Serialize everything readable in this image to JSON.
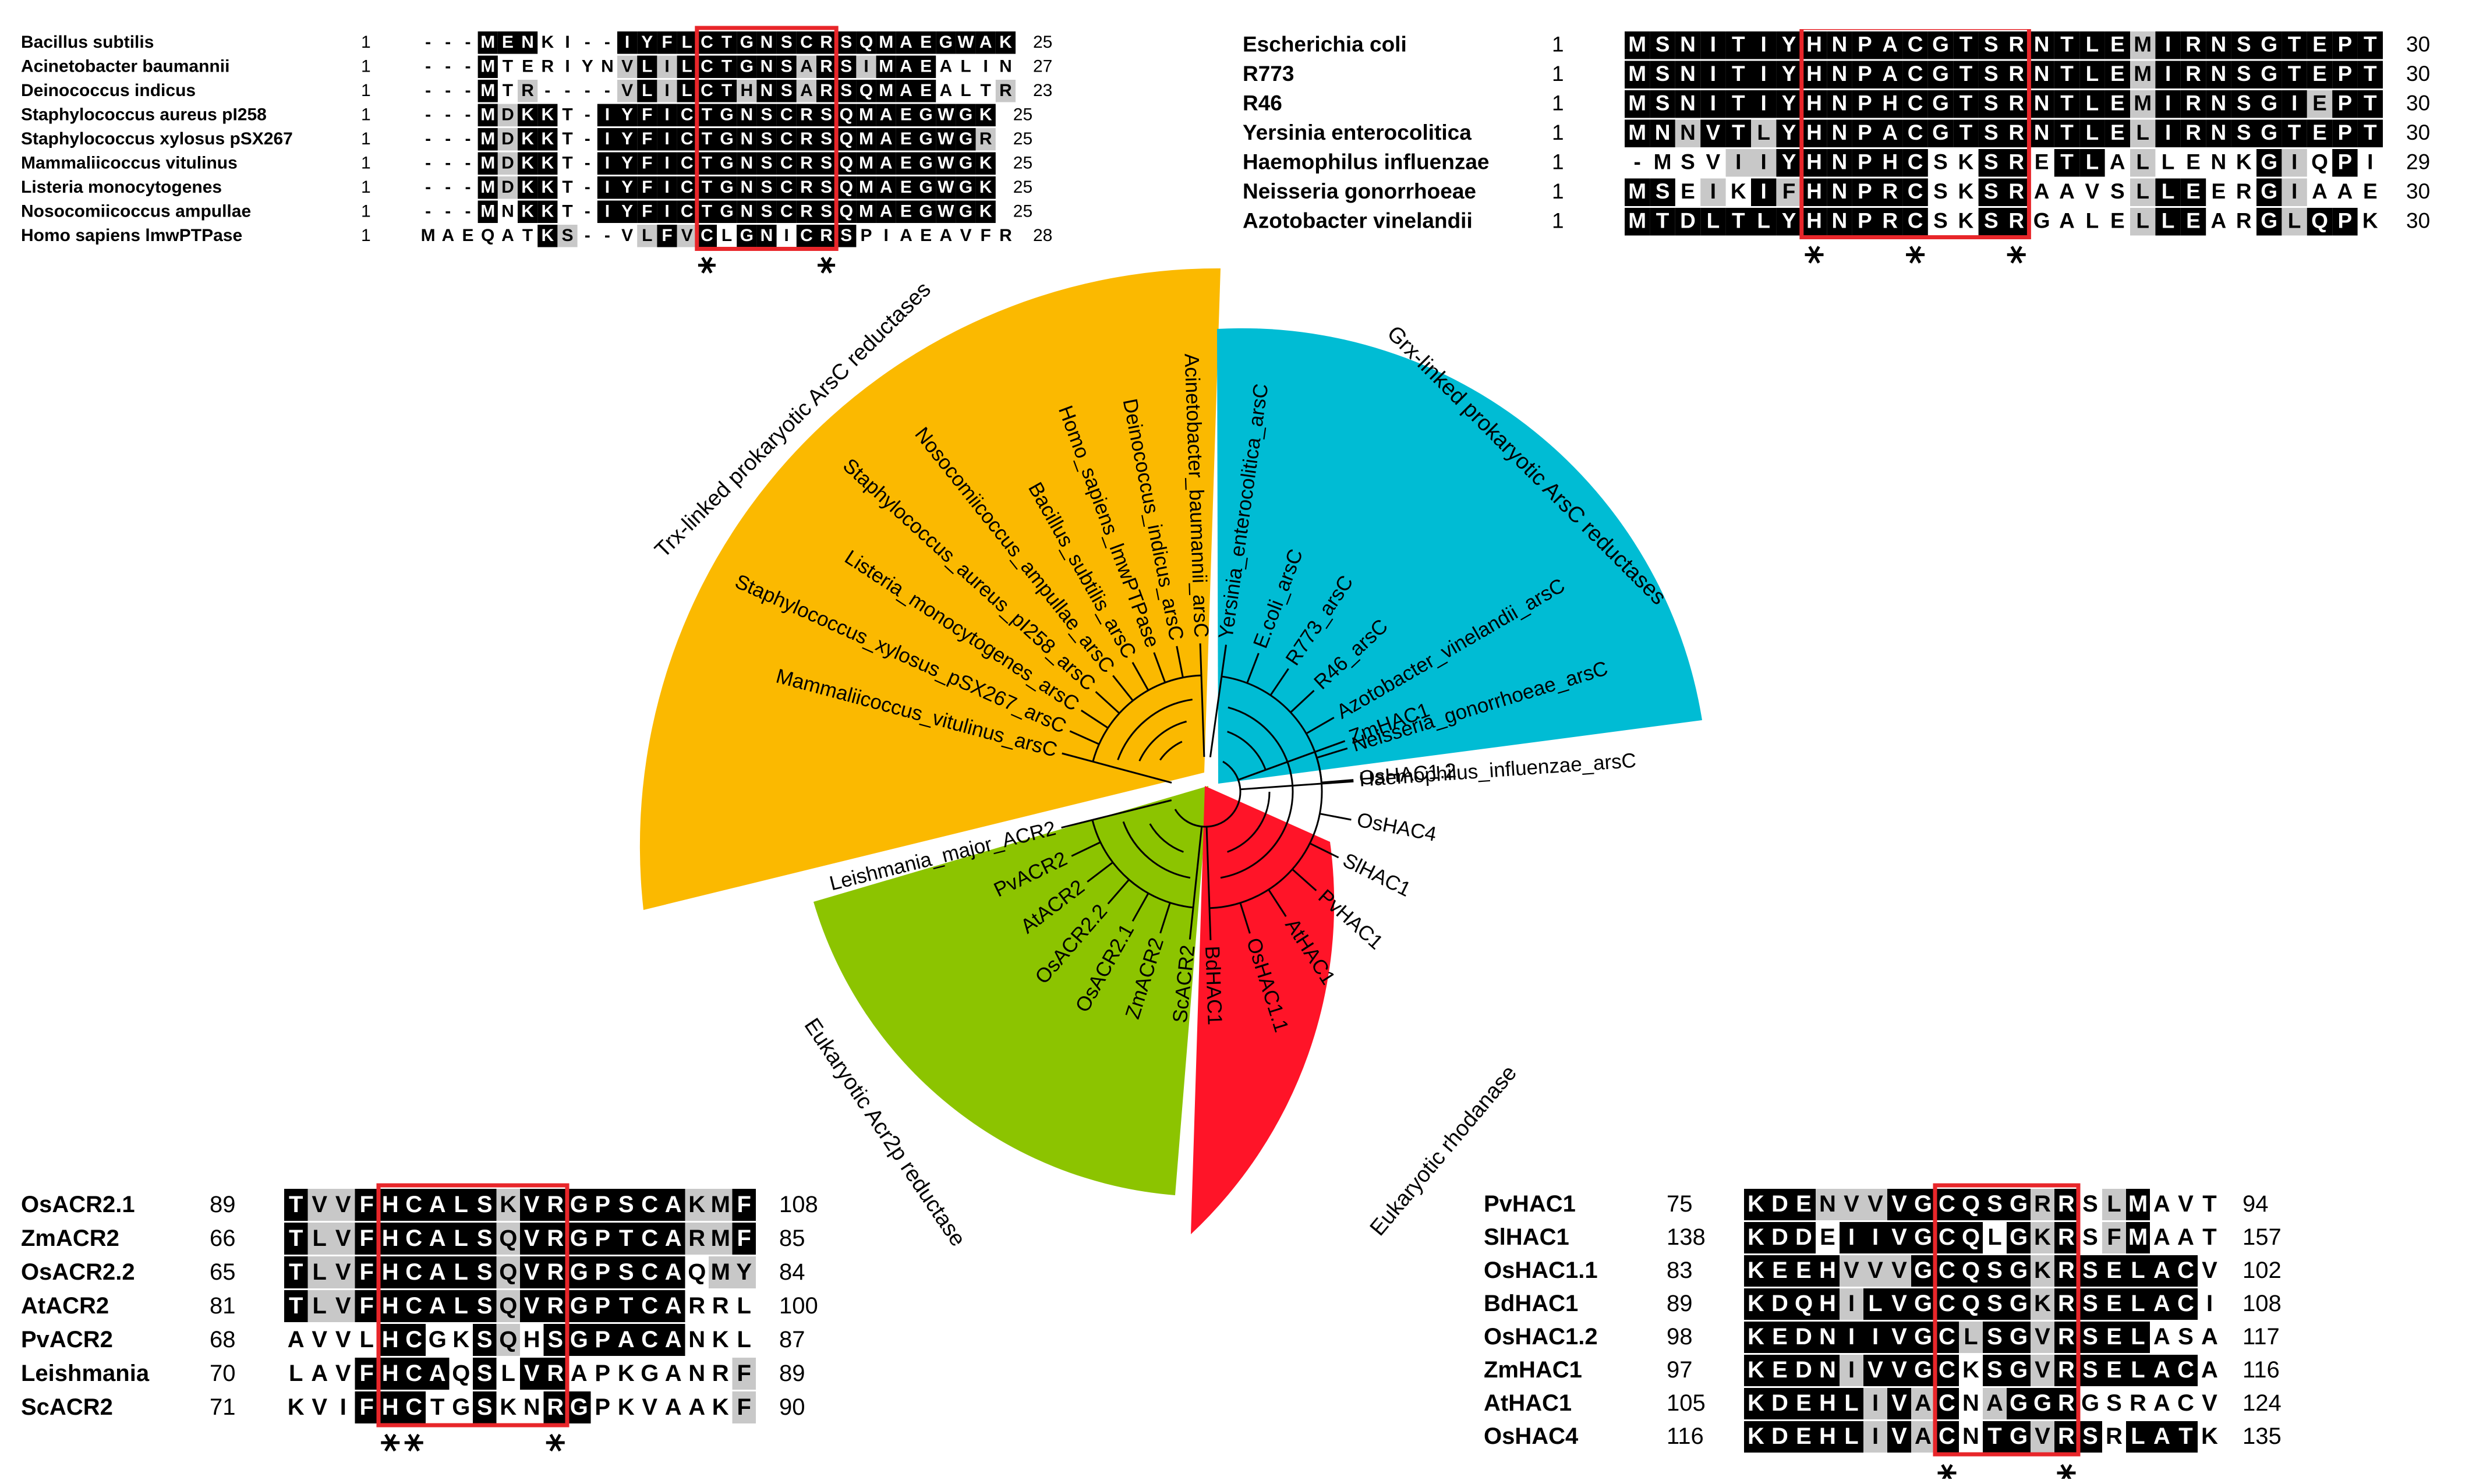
{
  "colors": {
    "trx": "#FBB900",
    "grx": "#00BCD4",
    "euk_acr2": "#8CC400",
    "rhodanase": "#FF1428",
    "motif_box": "#E8262A",
    "identical": "#000000",
    "similar": "#C8C8C8"
  },
  "tree": {
    "clade_labels": {
      "trx": "Trx-linked prokaryotic ArsC reductases",
      "grx": "Grx-linked prokaryotic ArsC reductases",
      "acr2": "Eukaryotic Acr2p reductase",
      "rhod": "Eukaryotic rhodanase"
    },
    "trx_leaves": [
      "Acinetobacter_baumannii_arsC",
      "Deinococcus_indicus_arsC",
      "Homo_sapiens_lmwPTPase",
      "Bacillus_subtilis_arsC",
      "Nosocomiicoccus_ampullae_arsC",
      "Staphylococcus_aureus_pI258_arsC",
      "Listeria_monocytogenes_arsC",
      "Staphylococcus_xylosus_pSX267_arsC",
      "Mammaliicoccus_vitulinus_arsC"
    ],
    "grx_leaves": [
      "Yersinia_enterocolitica_arsC",
      "E.coli_arsC",
      "R773_arsC",
      "R46_arsC",
      "Azotobacter_vinelandii_arsC",
      "Neisseria_gonorrhoeae_arsC",
      "Haemophilus_influenzae_arsC"
    ],
    "acr2_leaves": [
      "Leishmania_major_ACR2",
      "PvACR2",
      "AtACR2",
      "OsACR2.2",
      "OsACR2.1",
      "ZmACR2",
      "ScACR2"
    ],
    "rhod_leaves": [
      "ZmHAC1",
      "OsHAC1.2",
      "OsHAC4",
      "SlHAC1",
      "PvHAC1",
      "AtHAC1",
      "OsHAC1.1",
      "BdHAC1"
    ]
  },
  "alignments": {
    "trx": {
      "rows": [
        {
          "name": "Bacillus subtilis",
          "start": "1",
          "seq": "---MENKI--IYFLCTGNSCRSQMAEGWAK",
          "end": "25",
          "shade": "000bbbwnnnbbbbbbbbbbbbbbbbbbbb"
        },
        {
          "name": "Acinetobacter baumannii",
          "start": "1",
          "seq": "---MTERIYNVLILCTGNSARSIMAEALIN",
          "end": "27",
          "shade": "000bwwwwwwgbgbbbbbbgbbgbbbwwww"
        },
        {
          "name": "Deinococcus indicus",
          "start": "1",
          "seq": "---MTR----VLILCTHNSARSQMAEALTR",
          "end": "23",
          "shade": "000bwg0000gbgbbbgbbgbbbbbbwwwg"
        },
        {
          "name": "Staphylococcus aureus pI258",
          "start": "1",
          "seq": "---MDKKT-IYFICTGNSCRSQMAEGWGK",
          "end": "25",
          "shade": "000bgbbw0bbbbbbbbbbbbbbbbbbbb"
        },
        {
          "name": "Staphylococcus xylosus pSX267",
          "start": "1",
          "seq": "---MDKKT-IYFICTGNSCRSQMAEGWGR",
          "end": "25",
          "shade": "000bgbbw0bbbbbbbbbbbbbbbbbbbg"
        },
        {
          "name": "Mammaliicoccus vitulinus",
          "start": "1",
          "seq": "---MDKKT-IYFICTGNSCRSQMAEGWGK",
          "end": "25",
          "shade": "000bgbbw0bbbbbbbbbbbbbbbbbbbb"
        },
        {
          "name": "Listeria monocytogenes",
          "start": "1",
          "seq": "---MDKKT-IYFICTGNSCRSQMAEGWGK",
          "end": "25",
          "shade": "000bgbbw0bbbbbbbbbbbbbbbbbbbb"
        },
        {
          "name": "Nosocomiicoccus ampullae",
          "start": "1",
          "seq": "---MNKKT-IYFICTGNSCRSQMAEGWGK",
          "end": "25",
          "shade": "000bwbbw0bbbbbbbbbbbbbbbbbbbb"
        },
        {
          "name": "Homo sapiens lmwPTPase",
          "start": "1",
          "seq": "MAEQATKS--VLFVCLGNICRSPIAEAVFR",
          "end": "28",
          "shade": "wwwwwwbg00wgbgbwbbwbbbwwwwwwww"
        }
      ]
    },
    "grx": {
      "rows": [
        {
          "name": "Escherichia coli",
          "start": "1",
          "seq": "MSNITIYHNPACGTSRNTLEMIRNSGTEPT",
          "end": "30",
          "shade": "bbbbbbbbbbbbbbbbbbbbgbbbbbbbbb"
        },
        {
          "name": "R773",
          "start": "1",
          "seq": "MSNITIYHNPACGTSRNTLEMIRNSGTEPT",
          "end": "30",
          "shade": "bbbbbbbbbbbbbbbbbbbbgbbbbbbbbb"
        },
        {
          "name": "R46",
          "start": "1",
          "seq": "MSNITIYHNPHCGTSRNTLEMIRNSGIEPT",
          "end": "30",
          "shade": "bbbbbbbbbbbbbbbbbbbbgbbbbbbgbb"
        },
        {
          "name": "Yersinia enterocolitica",
          "start": "1",
          "seq": "MNNVTLYHNPACGTSRNTLELIRNSGTEPT",
          "end": "30",
          "shade": "bbgbbgbbbbbbbbbbbbbbgbbbbbbbbb"
        },
        {
          "name": "Haemophilus influenzae",
          "start": "1",
          "seq": "-MSVIIYHNPHCSKSRETLALLENKGIQPI",
          "end": "29",
          "shade": "0wwwggbbbbbbwwbbwbbwgwwwwbgwbw"
        },
        {
          "name": "Neisseria gonorrhoeae",
          "start": "1",
          "seq": "MSEIKIFHNPRCSKSRAAVSLLEERGIAAE",
          "end": "30",
          "shade": "bbwgwbgbbbbbwwbbwwwwgbbwwbgwww"
        },
        {
          "name": "Azotobacter vinelandii",
          "start": "1",
          "seq": "MTDLTLYHNPRCSKSRGALELLEARGLQPK",
          "end": "30",
          "shade": "bbbbbbbbbbbbwwbbwwwwgbbwwbgbbw"
        }
      ]
    },
    "acr2": {
      "rows": [
        {
          "name": "OsACR2.1",
          "start": "89",
          "seq": "TVVFHCALSKVRGPSCAKMF",
          "end": "108",
          "shade": "bggbbbbbbgbbbbbbbggb"
        },
        {
          "name": "ZmACR2",
          "start": "66",
          "seq": "TLVFHCALSQVRGPTCARMF",
          "end": "85",
          "shade": "bggbbbbbbgbbbbbbbggb"
        },
        {
          "name": "OsACR2.2",
          "start": "65",
          "seq": "TLVFHCALSQVRGPSCAQMY",
          "end": "84",
          "shade": "bggbbbbbbgbbbbbbbwgg"
        },
        {
          "name": "AtACR2",
          "start": "81",
          "seq": "TLVFHCALSQVRGPTCARRL",
          "end": "100",
          "shade": "bggbbbbbbgbbbbbbbwww"
        },
        {
          "name": "PvACR2",
          "start": "68",
          "seq": "AVVLHCGKSQHSGPACANKL",
          "end": "87",
          "shade": "wwwwbbwwbgwbbbbbbwww"
        },
        {
          "name": "Leishmania",
          "start": "70",
          "seq": "LAVFHCAQSLVRAPKGANRF",
          "end": "89",
          "shade": "wwwbbbbwbwbbwwwwwwwg"
        },
        {
          "name": "ScACR2",
          "start": "71",
          "seq": "KVIFHCTGSKNRGPKVAAKF",
          "end": "90",
          "shade": "wwwbbbwwbwwbbwwwwwwg"
        }
      ]
    },
    "rhod": {
      "rows": [
        {
          "name": "PvHAC1",
          "start": "75",
          "seq": "KDENVVVGCQSGRRSLMAVT",
          "end": "94",
          "shade": "bbbgggbbbbbbgbwgbwww"
        },
        {
          "name": "SlHAC1",
          "start": "138",
          "seq": "KDDEIIVGCQLGKRSFMAAT",
          "end": "157",
          "shade": "bbbwbbbbbbwbgbwgbwww"
        },
        {
          "name": "OsHAC1.1",
          "start": "83",
          "seq": "KEEHVVVGCQSGKRSELACV",
          "end": "102",
          "shade": "bbbbgggbbbbbgbbbbbbw"
        },
        {
          "name": "BdHAC1",
          "start": "89",
          "seq": "KDQHILVGCQSGKRSELACI",
          "end": "108",
          "shade": "bbbbgbbbbbbbgbbbbbbw"
        },
        {
          "name": "OsHAC1.2",
          "start": "98",
          "seq": "KEDNIIVGCLSGVRSELASA",
          "end": "117",
          "shade": "bbbbbbbbbgbbgbbbbwww"
        },
        {
          "name": "ZmHAC1",
          "start": "97",
          "seq": "KEDNIVVGCKSGVRSELACA",
          "end": "116",
          "shade": "bbbbgbbbbwbbgbbbbbbw"
        },
        {
          "name": "AtHAC1",
          "start": "105",
          "seq": "KDEHLIVACNAGGRGSRACV",
          "end": "124",
          "shade": "bbbbbgbgbwgbbbwwwwww"
        },
        {
          "name": "OsHAC4",
          "start": "116",
          "seq": "KDEHLIVACNTGVRSRLATK",
          "end": "135",
          "shade": "bbbbbgbgbwbbgbbwbbbw"
        }
      ]
    }
  }
}
